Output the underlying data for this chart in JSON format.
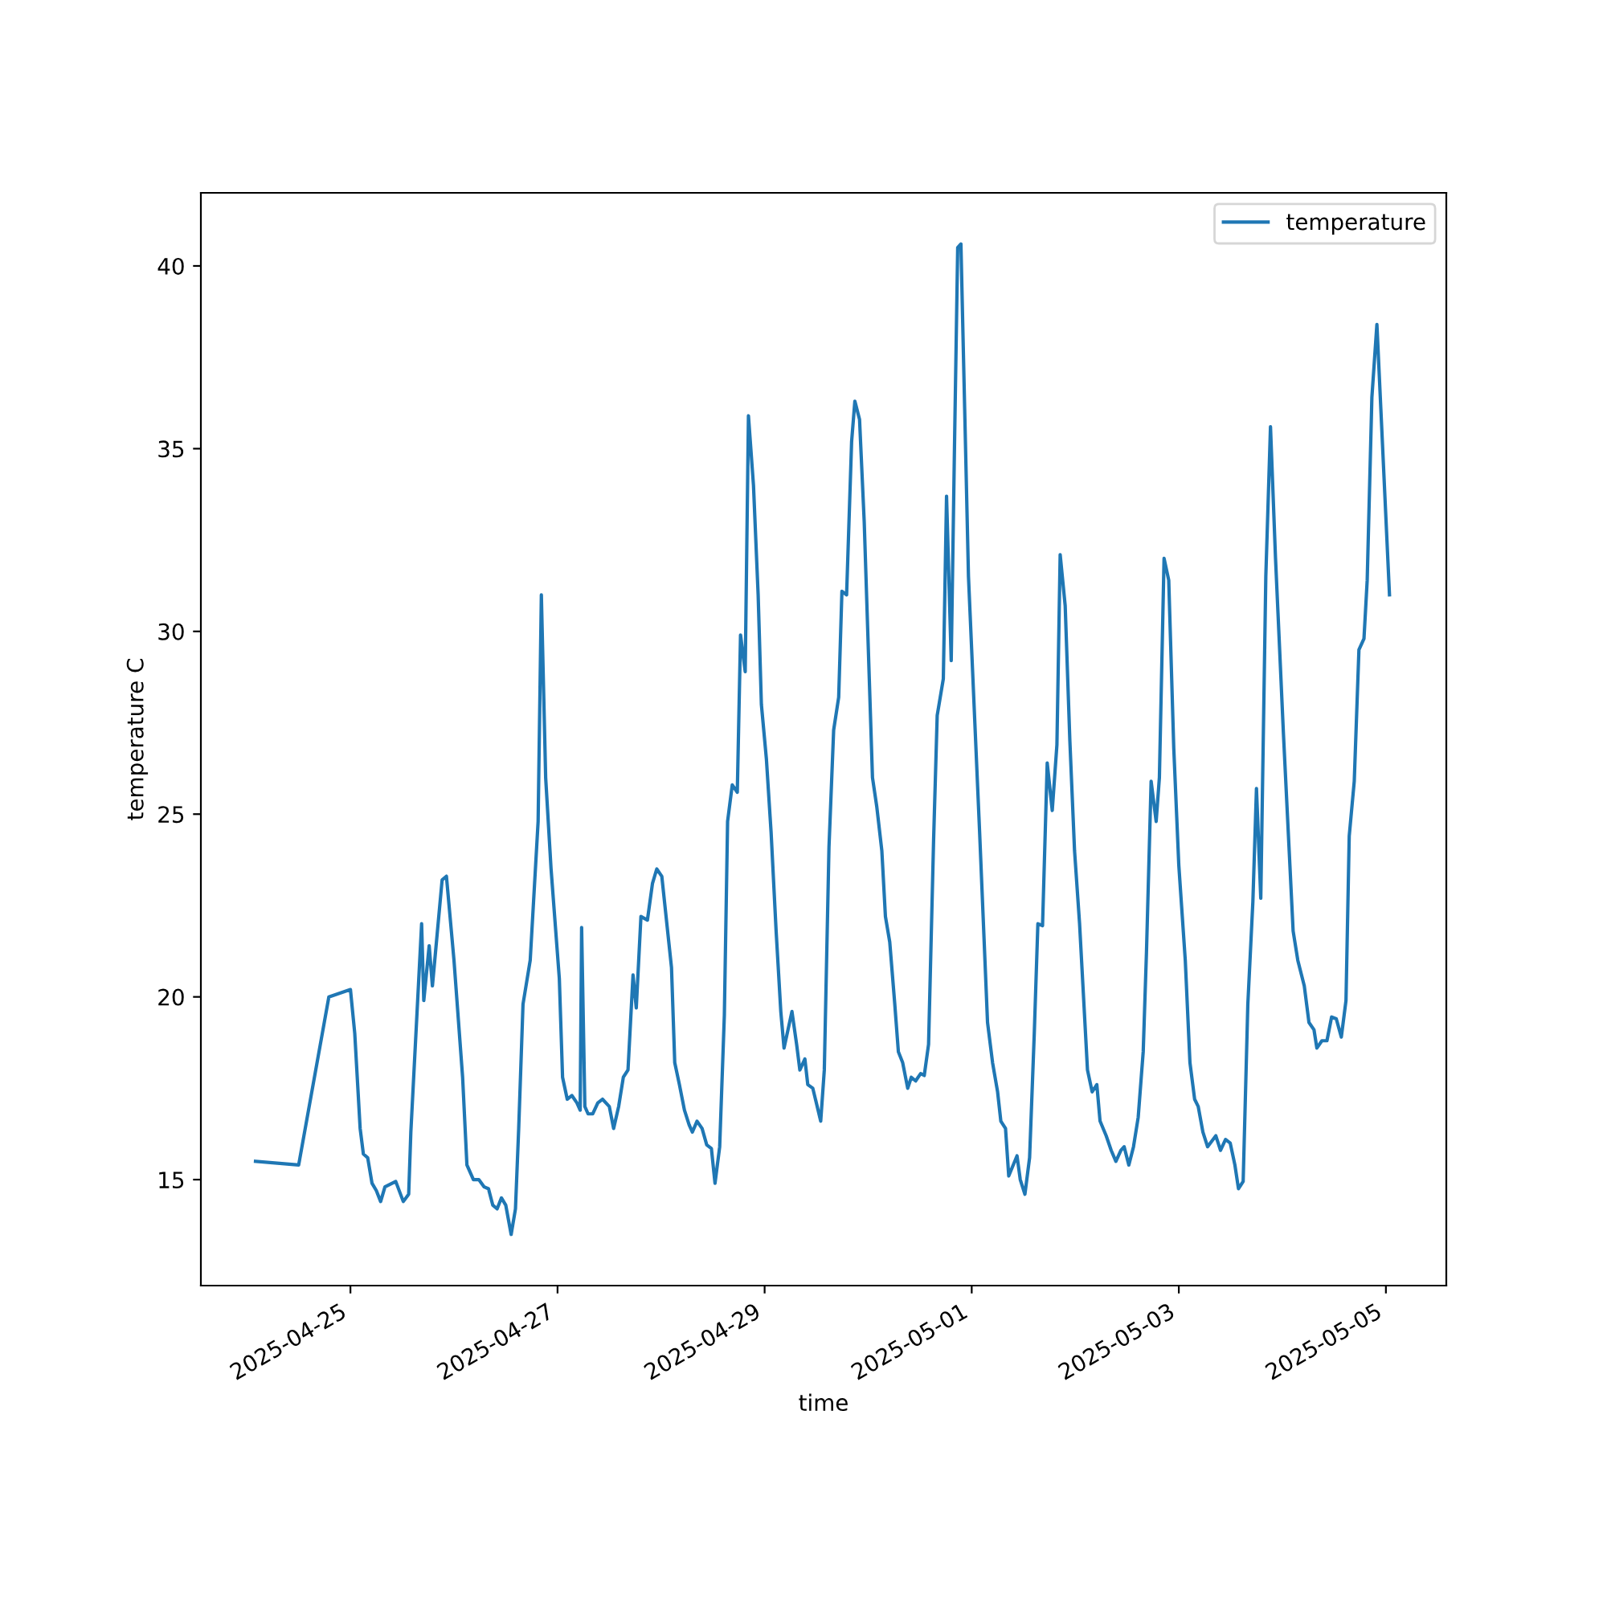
{
  "chart_data": {
    "type": "line",
    "xlabel": "time",
    "ylabel": "temperature C",
    "x": [
      "2025-04-24T02:00",
      "2025-04-24T12:00",
      "2025-04-24T19:00",
      "2025-04-25T00:00",
      "2025-04-25T01:00",
      "2025-04-25T02:15",
      "2025-04-25T03:00",
      "2025-04-25T04:00",
      "2025-04-25T05:00",
      "2025-04-25T06:00",
      "2025-04-25T07:00",
      "2025-04-25T08:00",
      "2025-04-25T10:30",
      "2025-04-25T12:15",
      "2025-04-25T13:30",
      "2025-04-25T14:00",
      "2025-04-25T16:30",
      "2025-04-25T17:00",
      "2025-04-25T18:15",
      "2025-04-25T19:00",
      "2025-04-25T21:15",
      "2025-04-25T22:15",
      "2025-04-26T00:00",
      "2025-04-26T02:00",
      "2025-04-26T03:00",
      "2025-04-26T04:30",
      "2025-04-26T05:45",
      "2025-04-26T07:00",
      "2025-04-26T08:00",
      "2025-04-26T09:00",
      "2025-04-26T10:00",
      "2025-04-26T11:00",
      "2025-04-26T12:00",
      "2025-04-26T13:15",
      "2025-04-26T14:15",
      "2025-04-26T15:00",
      "2025-04-26T16:00",
      "2025-04-26T17:40",
      "2025-04-26T19:30",
      "2025-04-26T20:15",
      "2025-04-26T21:15",
      "2025-04-26T22:30",
      "2025-04-27T00:25",
      "2025-04-27T01:10",
      "2025-04-27T02:15",
      "2025-04-27T03:20",
      "2025-04-27T04:30",
      "2025-04-27T05:15",
      "2025-04-27T05:35",
      "2025-04-27T06:20",
      "2025-04-27T07:05",
      "2025-04-27T08:10",
      "2025-04-27T09:20",
      "2025-04-27T10:25",
      "2025-04-27T12:00",
      "2025-04-27T13:00",
      "2025-04-27T14:10",
      "2025-04-27T15:15",
      "2025-04-27T16:20",
      "2025-04-27T17:30",
      "2025-04-27T18:15",
      "2025-04-27T19:20",
      "2025-04-27T20:50",
      "2025-04-27T22:00",
      "2025-04-27T23:00",
      "2025-04-28T00:10",
      "2025-04-28T02:25",
      "2025-04-28T03:10",
      "2025-04-28T04:15",
      "2025-04-28T05:25",
      "2025-04-28T06:30",
      "2025-04-28T07:15",
      "2025-04-28T08:20",
      "2025-04-28T09:30",
      "2025-04-28T10:35",
      "2025-04-28T11:40",
      "2025-04-28T12:30",
      "2025-04-28T13:35",
      "2025-04-28T14:40",
      "2025-04-28T15:25",
      "2025-04-28T16:30",
      "2025-04-28T17:40",
      "2025-04-28T18:25",
      "2025-04-28T19:30",
      "2025-04-28T20:15",
      "2025-04-28T21:25",
      "2025-04-28T22:30",
      "2025-04-28T23:15",
      "2025-04-29T00:25",
      "2025-04-29T01:30",
      "2025-04-29T02:40",
      "2025-04-29T03:45",
      "2025-04-29T04:30",
      "2025-04-29T06:20",
      "2025-04-29T07:25",
      "2025-04-29T08:10",
      "2025-04-29T09:20",
      "2025-04-29T10:00",
      "2025-04-29T11:10",
      "2025-04-29T13:00",
      "2025-04-29T13:50",
      "2025-04-29T14:55",
      "2025-04-29T16:00",
      "2025-04-29T17:10",
      "2025-04-29T17:55",
      "2025-04-29T19:00",
      "2025-04-29T20:10",
      "2025-04-29T20:55",
      "2025-04-29T22:00",
      "2025-04-29T23:05",
      "2025-04-30T01:00",
      "2025-04-30T02:00",
      "2025-04-30T03:10",
      "2025-04-30T04:00",
      "2025-04-30T05:00",
      "2025-04-30T06:10",
      "2025-04-30T07:00",
      "2025-04-30T08:00",
      "2025-04-30T09:10",
      "2025-04-30T10:00",
      "2025-04-30T11:00",
      "2025-04-30T12:10",
      "2025-04-30T13:00",
      "2025-04-30T14:00",
      "2025-04-30T15:10",
      "2025-04-30T16:00",
      "2025-04-30T17:25",
      "2025-04-30T18:10",
      "2025-04-30T19:15",
      "2025-04-30T20:00",
      "2025-04-30T20:45",
      "2025-04-30T21:30",
      "2025-04-30T23:15",
      "2025-05-01T01:50",
      "2025-05-01T03:40",
      "2025-05-01T04:50",
      "2025-05-01T06:00",
      "2025-05-01T06:45",
      "2025-05-01T07:50",
      "2025-05-01T08:35",
      "2025-05-01T10:30",
      "2025-05-01T11:15",
      "2025-05-01T12:20",
      "2025-05-01T13:25",
      "2025-05-01T14:30",
      "2025-05-01T15:20",
      "2025-05-01T16:25",
      "2025-05-01T17:30",
      "2025-05-01T18:40",
      "2025-05-01T19:45",
      "2025-05-01T20:30",
      "2025-05-01T21:40",
      "2025-05-01T22:45",
      "2025-05-01T23:50",
      "2025-05-02T01:00",
      "2025-05-02T02:50",
      "2025-05-02T03:55",
      "2025-05-02T05:00",
      "2025-05-02T05:45",
      "2025-05-02T07:10",
      "2025-05-02T08:20",
      "2025-05-02T09:25",
      "2025-05-02T10:35",
      "2025-05-02T11:20",
      "2025-05-02T12:25",
      "2025-05-02T13:30",
      "2025-05-02T14:35",
      "2025-05-02T15:45",
      "2025-05-02T16:30",
      "2025-05-02T17:35",
      "2025-05-02T18:45",
      "2025-05-02T19:30",
      "2025-05-02T20:35",
      "2025-05-02T21:40",
      "2025-05-02T22:50",
      "2025-05-03T00:00",
      "2025-05-03T01:30",
      "2025-05-03T02:35",
      "2025-05-03T03:40",
      "2025-05-03T04:30",
      "2025-05-03T05:35",
      "2025-05-03T06:40",
      "2025-05-03T08:35",
      "2025-05-03T09:40",
      "2025-05-03T10:50",
      "2025-05-03T11:55",
      "2025-05-03T13:00",
      "2025-05-03T13:50",
      "2025-05-03T14:55",
      "2025-05-03T16:00",
      "2025-05-03T17:10",
      "2025-05-03T18:00",
      "2025-05-03T19:00",
      "2025-05-03T20:10",
      "2025-05-03T21:15",
      "2025-05-03T22:25",
      "2025-05-04T00:15",
      "2025-05-04T02:30",
      "2025-05-04T03:35",
      "2025-05-04T05:05",
      "2025-05-04T06:10",
      "2025-05-04T07:20",
      "2025-05-04T08:00",
      "2025-05-04T09:10",
      "2025-05-04T10:20",
      "2025-05-04T11:25",
      "2025-05-04T12:30",
      "2025-05-04T13:40",
      "2025-05-04T14:45",
      "2025-05-04T15:30",
      "2025-05-04T16:40",
      "2025-05-04T17:45",
      "2025-05-04T18:55",
      "2025-05-04T19:40",
      "2025-05-04T20:45",
      "2025-05-04T21:55",
      "2025-05-05T00:50"
    ],
    "series": [
      {
        "name": "temperature",
        "color": "#1f77b4",
        "values": [
          15.5,
          15.4,
          20.0,
          20.2,
          19.0,
          16.4,
          15.7,
          15.6,
          14.9,
          14.7,
          14.4,
          14.8,
          14.95,
          14.4,
          14.6,
          16.3,
          22.0,
          19.9,
          21.4,
          20.3,
          23.2,
          23.3,
          21.0,
          17.8,
          15.4,
          15.0,
          15.0,
          14.8,
          14.75,
          14.3,
          14.2,
          14.5,
          14.3,
          13.5,
          14.2,
          16.4,
          19.8,
          21.0,
          24.8,
          31.0,
          26.0,
          23.5,
          20.5,
          17.8,
          17.2,
          17.3,
          17.1,
          16.9,
          21.9,
          17.0,
          16.8,
          16.8,
          17.1,
          17.2,
          17.0,
          16.4,
          17.0,
          17.8,
          18.0,
          20.6,
          19.7,
          22.2,
          22.1,
          23.1,
          23.5,
          23.3,
          20.8,
          18.2,
          17.6,
          16.9,
          16.5,
          16.3,
          16.6,
          16.4,
          15.95,
          15.85,
          14.9,
          15.9,
          19.5,
          24.8,
          25.8,
          25.6,
          29.9,
          28.9,
          35.9,
          34.0,
          31.0,
          28.0,
          26.5,
          24.5,
          21.8,
          19.6,
          18.6,
          19.6,
          18.7,
          18.0,
          18.3,
          17.6,
          17.5,
          16.6,
          18.0,
          24.1,
          27.3,
          28.2,
          31.1,
          31.0,
          35.2,
          36.3,
          35.8,
          33.0,
          26.0,
          25.2,
          24.0,
          22.2,
          21.5,
          19.8,
          18.5,
          18.2,
          17.5,
          17.8,
          17.7,
          17.9,
          17.85,
          18.7,
          24.3,
          27.7,
          28.7,
          33.7,
          29.2,
          35.0,
          40.5,
          40.6,
          31.5,
          24.5,
          19.3,
          18.2,
          17.4,
          16.6,
          16.4,
          15.1,
          15.65,
          15.0,
          14.6,
          15.6,
          19.0,
          22.0,
          21.95,
          26.4,
          25.1,
          26.9,
          32.1,
          30.7,
          27.0,
          24.0,
          22.0,
          18.0,
          17.4,
          17.6,
          16.6,
          16.2,
          15.8,
          15.5,
          15.8,
          15.9,
          15.4,
          15.9,
          16.7,
          18.5,
          21.2,
          25.9,
          24.8,
          26.0,
          32.0,
          31.4,
          26.8,
          23.6,
          21.0,
          18.2,
          17.2,
          17.0,
          16.3,
          15.9,
          16.2,
          15.8,
          16.1,
          16.0,
          15.4,
          14.75,
          14.95,
          19.8,
          22.6,
          25.7,
          22.7,
          31.5,
          35.6,
          32.0,
          27.2,
          21.8,
          21.0,
          20.3,
          19.3,
          19.1,
          18.6,
          18.8,
          18.8,
          19.45,
          19.4,
          18.9,
          19.9,
          24.4,
          25.9,
          29.5,
          29.8,
          31.4,
          36.4,
          38.4,
          31.0
        ]
      }
    ],
    "xlim": [
      "2025-04-23T13:20",
      "2025-05-05T14:00"
    ],
    "xticks": [
      "2025-04-25",
      "2025-04-27",
      "2025-04-29",
      "2025-05-01",
      "2025-05-03",
      "2025-05-05"
    ],
    "ylim": [
      12.1,
      42.0
    ],
    "yticks": [
      15,
      20,
      25,
      30,
      35,
      40
    ],
    "legend": "top right",
    "line_style": "solid",
    "grid": false
  }
}
